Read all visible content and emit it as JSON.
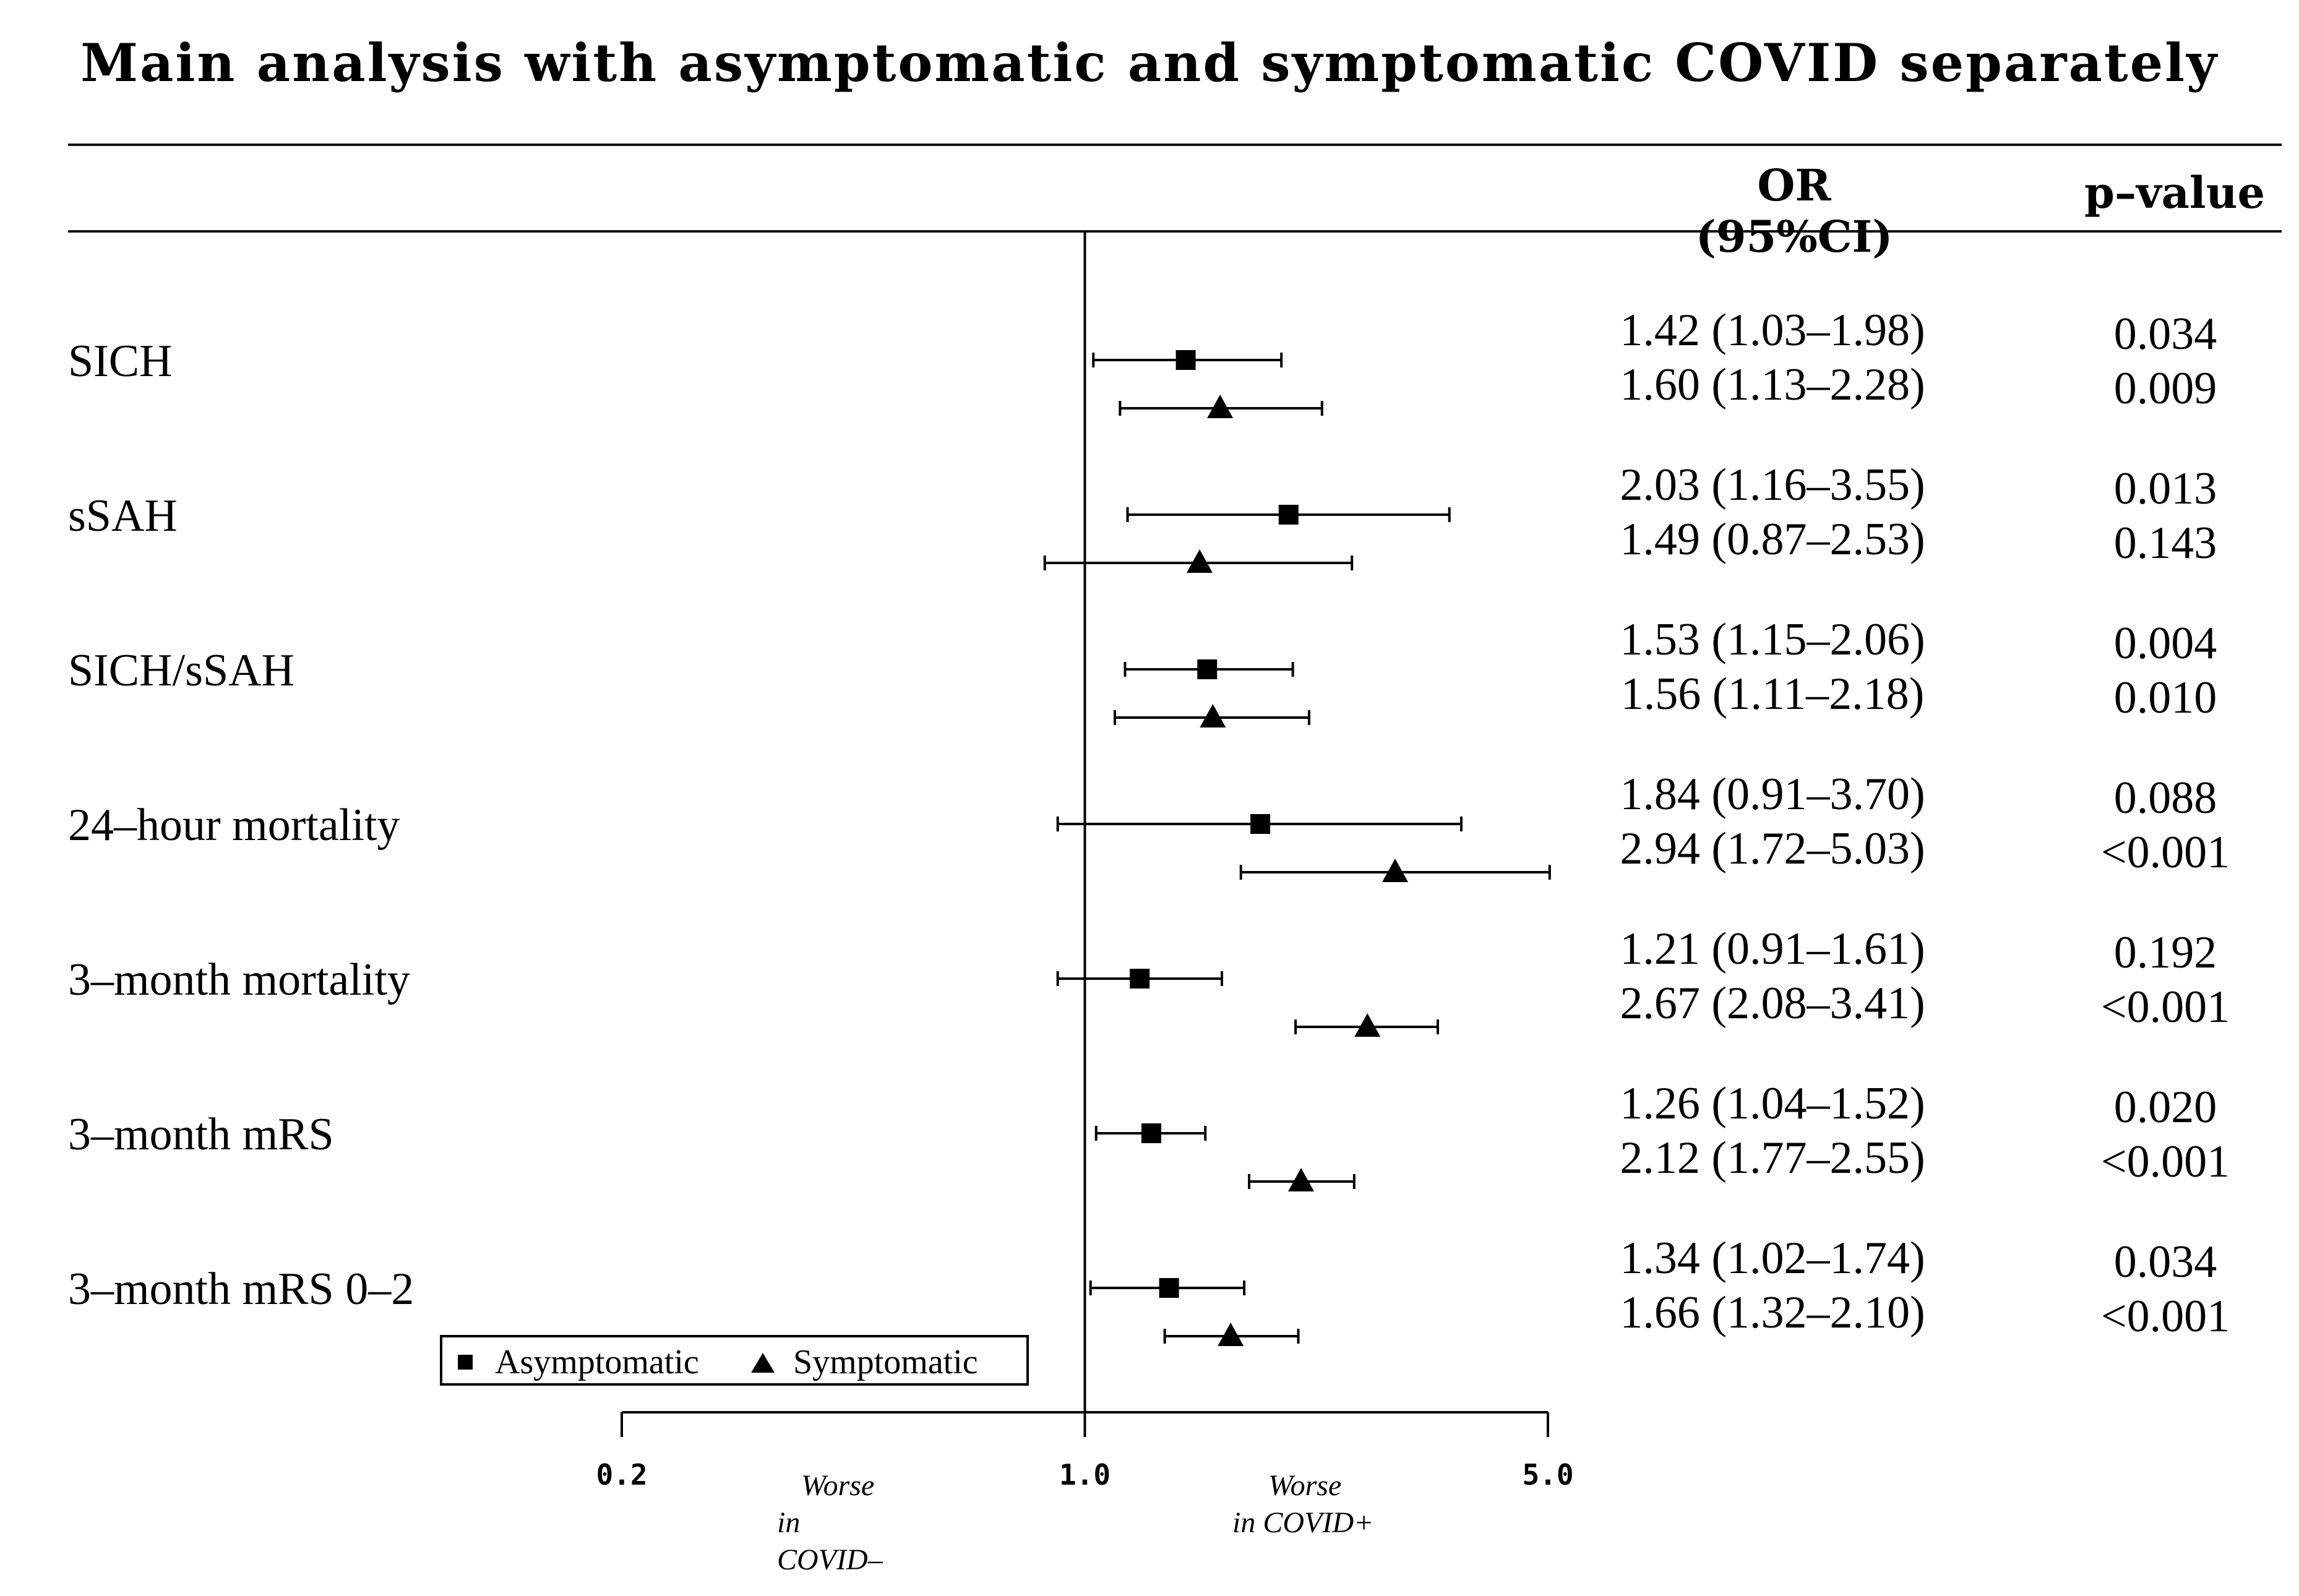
{
  "title": "Main analysis with asymptomatic and symptomatic COVID separately",
  "headers": {
    "or": "OR (95%CI)",
    "p": "p–value"
  },
  "outcomes": [
    {
      "label": "SICH",
      "rows": [
        {
          "ci": "1.42 (1.03–1.98)",
          "p": "0.034"
        },
        {
          "ci": "1.60 (1.13–2.28)",
          "p": "0.009"
        }
      ]
    },
    {
      "label": "sSAH",
      "rows": [
        {
          "ci": "2.03 (1.16–3.55)",
          "p": "0.013"
        },
        {
          "ci": "1.49 (0.87–2.53)",
          "p": "0.143"
        }
      ]
    },
    {
      "label": "SICH/sSAH",
      "rows": [
        {
          "ci": "1.53 (1.15–2.06)",
          "p": "0.004"
        },
        {
          "ci": "1.56 (1.11–2.18)",
          "p": "0.010"
        }
      ]
    },
    {
      "label": "24–hour mortality",
      "rows": [
        {
          "ci": "1.84 (0.91–3.70)",
          "p": "0.088"
        },
        {
          "ci": "2.94 (1.72–5.03)",
          "p": "<0.001"
        }
      ]
    },
    {
      "label": "3–month mortality",
      "rows": [
        {
          "ci": "1.21 (0.91–1.61)",
          "p": "0.192"
        },
        {
          "ci": "2.67 (2.08–3.41)",
          "p": "<0.001"
        }
      ]
    },
    {
      "label": "3–month mRS",
      "rows": [
        {
          "ci": "1.26 (1.04–1.52)",
          "p": "0.020"
        },
        {
          "ci": "2.12 (1.77–2.55)",
          "p": "<0.001"
        }
      ]
    },
    {
      "label": "3–month mRS 0–2",
      "rows": [
        {
          "ci": "1.34 (1.02–1.74)",
          "p": "0.034"
        },
        {
          "ci": "1.66 (1.32–2.10)",
          "p": "<0.001"
        }
      ]
    }
  ],
  "chart_data": {
    "type": "forest",
    "title": "Main analysis with asymptomatic and symptomatic COVID separately",
    "x_scale": "log",
    "xlim": [
      0.2,
      5.0
    ],
    "ticks": [
      "0.2",
      "1.0",
      "5.0"
    ],
    "reference_line": 1.0,
    "left_annotation": "Worse in COVID–",
    "right_annotation": "Worse in COVID+",
    "legend": {
      "position": "bottom-left",
      "entries": [
        "Asymptomatic",
        "Symptomatic"
      ]
    },
    "series": [
      {
        "name": "Asymptomatic",
        "marker": "square",
        "or": [
          1.42,
          2.03,
          1.53,
          1.84,
          1.21,
          1.26,
          1.34
        ],
        "lower": [
          1.03,
          1.16,
          1.15,
          0.91,
          0.91,
          1.04,
          1.02
        ],
        "upper": [
          1.98,
          3.55,
          2.06,
          3.7,
          1.61,
          1.52,
          1.74
        ]
      },
      {
        "name": "Symptomatic",
        "marker": "triangle",
        "or": [
          1.6,
          1.49,
          1.56,
          2.94,
          2.67,
          2.12,
          1.66
        ],
        "lower": [
          1.13,
          0.87,
          1.11,
          1.72,
          2.08,
          1.77,
          1.32
        ],
        "upper": [
          2.28,
          2.53,
          2.18,
          5.03,
          3.41,
          2.55,
          2.1
        ]
      }
    ]
  },
  "colors": {
    "ink": "#000000"
  }
}
